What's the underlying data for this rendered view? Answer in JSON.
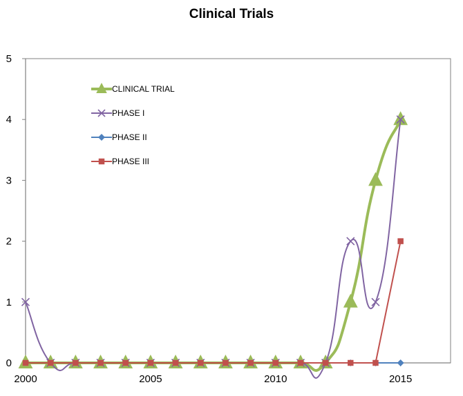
{
  "chart_data": {
    "type": "line",
    "title": "Clinical Trials",
    "xlabel": "",
    "ylabel": "",
    "xlim": [
      2000,
      2017
    ],
    "ylim": [
      0,
      5
    ],
    "x_ticks": [
      2000,
      2005,
      2010,
      2015
    ],
    "y_ticks": [
      0,
      1,
      2,
      3,
      4,
      5
    ],
    "grid": false,
    "legend_position": "top-left inside plot",
    "x": [
      2000,
      2001,
      2002,
      2003,
      2004,
      2005,
      2006,
      2007,
      2008,
      2009,
      2010,
      2011,
      2012,
      2013,
      2014,
      2015
    ],
    "series": [
      {
        "name": "CLINICAL TRIAL",
        "color": "#9BBB59",
        "marker": "triangle",
        "smooth": true,
        "values": [
          0,
          0,
          0,
          0,
          0,
          0,
          0,
          0,
          0,
          0,
          0,
          0,
          0,
          1,
          3,
          4
        ]
      },
      {
        "name": "PHASE I",
        "color": "#8064A2",
        "marker": "x",
        "smooth": true,
        "values": [
          1,
          0,
          0,
          0,
          0,
          0,
          0,
          0,
          0,
          0,
          0,
          0,
          0,
          2,
          1,
          4
        ]
      },
      {
        "name": "PHASE II",
        "color": "#4F81BD",
        "marker": "diamond",
        "smooth": false,
        "values": [
          0,
          0,
          0,
          0,
          0,
          0,
          0,
          0,
          0,
          0,
          0,
          0,
          0,
          0,
          0,
          0
        ]
      },
      {
        "name": "PHASE III",
        "color": "#C0504D",
        "marker": "square",
        "smooth": false,
        "values": [
          0,
          0,
          0,
          0,
          0,
          0,
          0,
          0,
          0,
          0,
          0,
          0,
          0,
          0,
          0,
          2
        ]
      }
    ]
  }
}
